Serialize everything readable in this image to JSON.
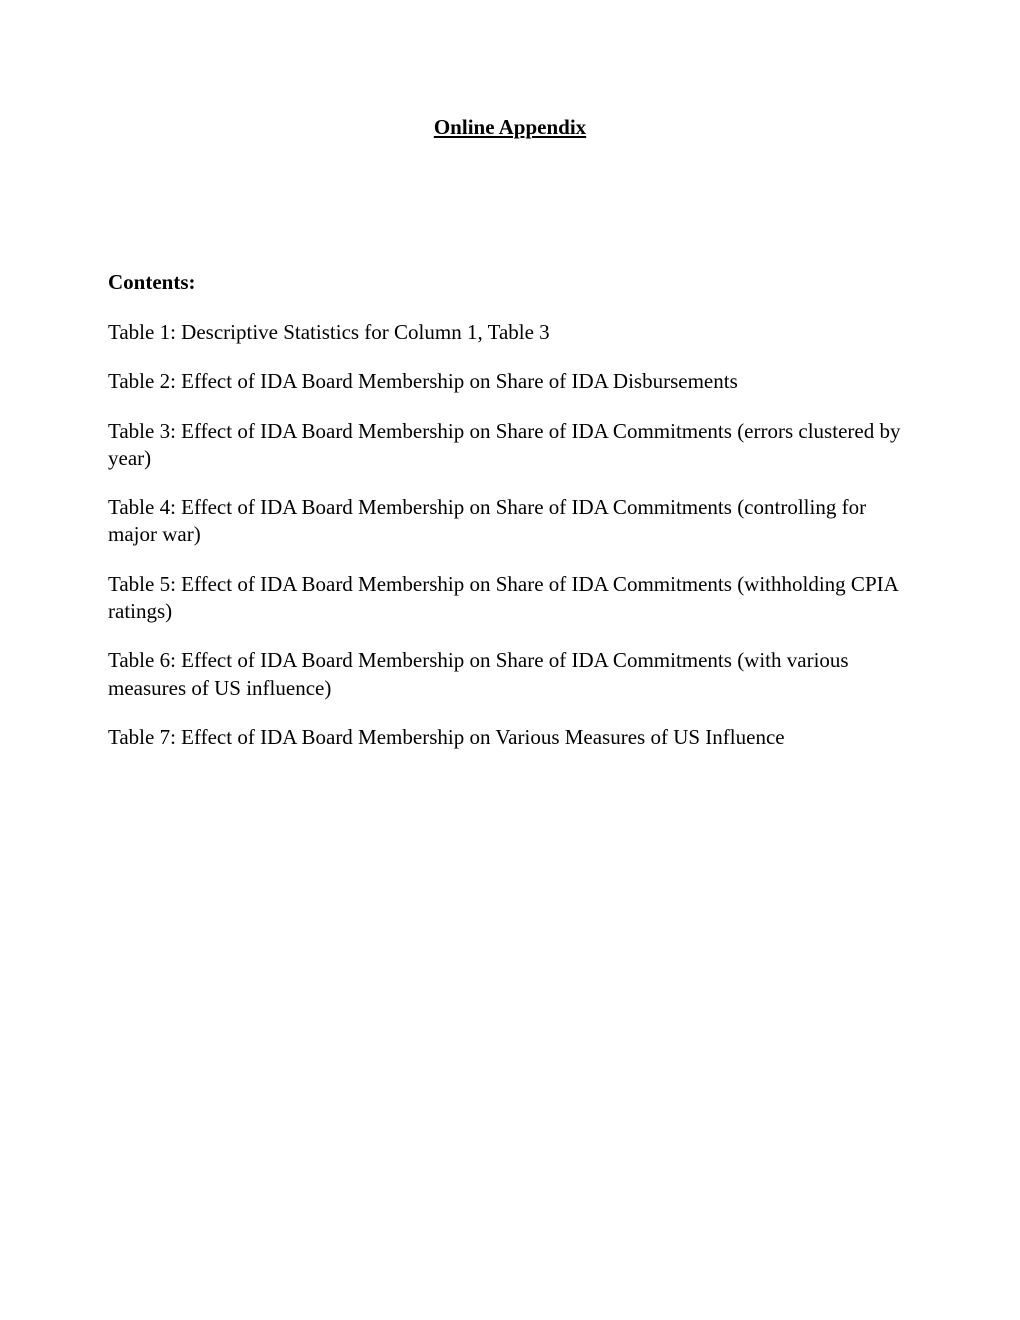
{
  "title": "Online Appendix",
  "contents_heading": "Contents:",
  "toc": [
    "Table 1: Descriptive Statistics for Column 1, Table 3",
    "Table 2: Effect of IDA Board Membership on Share of IDA Disbursements",
    "Table 3: Effect of IDA Board Membership on Share of IDA Commitments (errors clustered by year)",
    "Table 4: Effect of IDA Board Membership on Share of IDA Commitments (controlling for major war)",
    "Table 5: Effect of IDA Board Membership on Share of IDA Commitments (withholding CPIA ratings)",
    "Table 6: Effect of IDA Board Membership on Share of IDA Commitments (with various measures of US influence)",
    "Table 7: Effect of IDA Board Membership on Various Measures of US Influence"
  ],
  "colors": {
    "text": "#000000",
    "background": "#ffffff"
  },
  "typography": {
    "font_family": "Times New Roman",
    "title_fontsize": 21,
    "heading_fontsize": 21,
    "body_fontsize": 21
  }
}
